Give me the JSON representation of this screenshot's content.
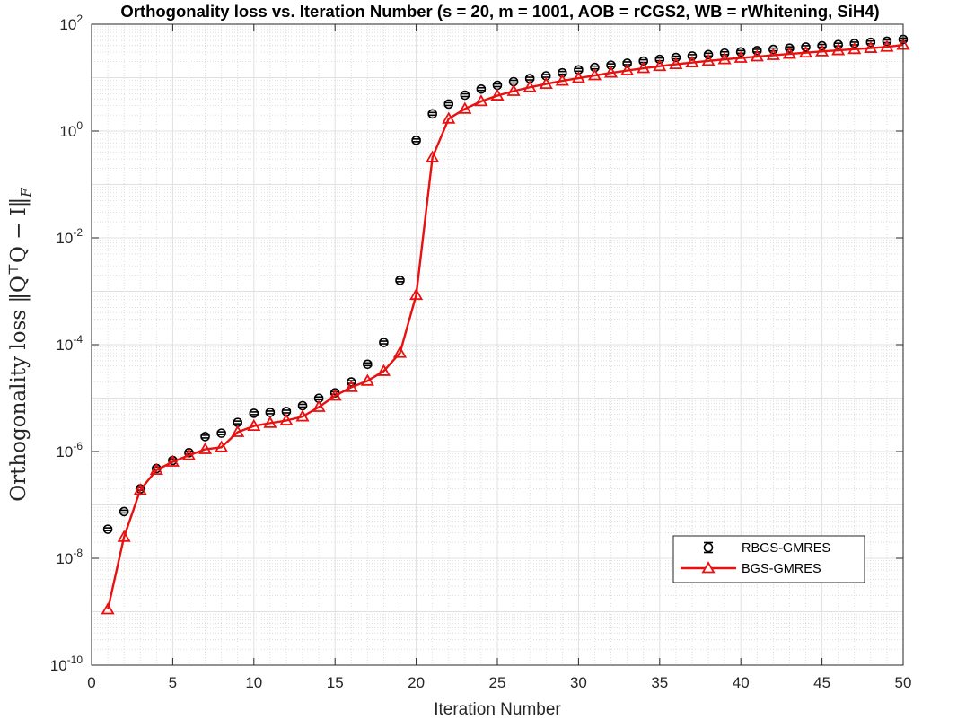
{
  "chart_data": {
    "type": "line",
    "title": "Orthogonality loss vs. Iteration Number (s = 20, m = 1001, AOB = rCGS2, WB = rWhitening, SiH4)",
    "xlabel": "Iteration Number",
    "ylabel": "Orthogonality loss ‖Q",
    "ylabel_sup": "⊤",
    "ylabel_mid": "Q − I‖",
    "ylabel_sub": "F",
    "xlim": [
      0,
      50
    ],
    "ylim": [
      1e-10,
      100
    ],
    "yscale": "log",
    "grid": true,
    "minor_grid": true,
    "legend_position": "lower-right",
    "x_ticks": [
      "0",
      "5",
      "10",
      "15",
      "20",
      "25",
      "30",
      "35",
      "40",
      "45",
      "50"
    ],
    "y_ticks": [
      {
        "base": "10",
        "exp": "-10"
      },
      {
        "base": "10",
        "exp": "-8"
      },
      {
        "base": "10",
        "exp": "-6"
      },
      {
        "base": "10",
        "exp": "-4"
      },
      {
        "base": "10",
        "exp": "-2"
      },
      {
        "base": "10",
        "exp": "0"
      },
      {
        "base": "10",
        "exp": "2"
      }
    ],
    "x": [
      1,
      2,
      3,
      4,
      5,
      6,
      7,
      8,
      9,
      10,
      11,
      12,
      13,
      14,
      15,
      16,
      17,
      18,
      19,
      20,
      21,
      22,
      23,
      24,
      25,
      26,
      27,
      28,
      29,
      30,
      31,
      32,
      33,
      34,
      35,
      36,
      37,
      38,
      39,
      40,
      41,
      42,
      43,
      44,
      45,
      46,
      47,
      48,
      49,
      50
    ],
    "series": [
      {
        "name": "RBGS-GMRES",
        "color": "#000000",
        "style": "markers-errorbar",
        "marker": "circle",
        "values": [
          3.5e-08,
          7.5e-08,
          2e-07,
          4.8e-07,
          6.8e-07,
          9.5e-07,
          1.9e-06,
          2.2e-06,
          3.5e-06,
          5.2e-06,
          5.4e-06,
          5.6e-06,
          7.2e-06,
          9.9e-06,
          1.25e-05,
          2e-05,
          4.3e-05,
          0.00011,
          0.0016,
          0.67,
          2.1,
          3.2,
          4.7,
          6.1,
          7.2,
          8.4,
          9.6,
          10.8,
          12.3,
          14.0,
          15.5,
          17.1,
          18.6,
          20.4,
          22.0,
          23.8,
          25.4,
          27.0,
          28.7,
          30.3,
          32.0,
          33.7,
          35.6,
          37.4,
          39.4,
          41.5,
          43.6,
          45.8,
          48.0,
          52.0
        ]
      },
      {
        "name": "BGS-GMRES",
        "color": "#e8110f",
        "style": "line-markers",
        "marker": "triangle",
        "values": [
          1.1e-09,
          2.5e-08,
          1.9e-07,
          4.5e-07,
          6.4e-07,
          8.5e-07,
          1.1e-06,
          1.2e-06,
          2.3e-06,
          3e-06,
          3.4e-06,
          3.8e-06,
          4.5e-06,
          6.8e-06,
          1.1e-05,
          1.6e-05,
          2.1e-05,
          3.2e-05,
          7e-05,
          0.00085,
          0.32,
          1.7,
          2.6,
          3.6,
          4.6,
          5.6,
          6.6,
          7.6,
          8.7,
          9.8,
          11.0,
          12.3,
          13.6,
          15.0,
          16.4,
          17.8,
          19.2,
          20.6,
          22.0,
          23.4,
          24.8,
          26.3,
          27.8,
          29.3,
          30.9,
          32.5,
          34.1,
          35.8,
          37.6,
          41.0
        ]
      }
    ]
  }
}
